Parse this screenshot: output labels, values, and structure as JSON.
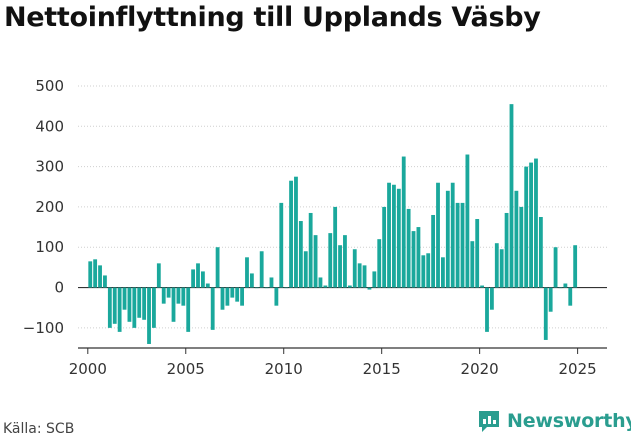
{
  "title": "Nettoinflyttning till Upplands Väsby",
  "source": "Källa: SCB",
  "brand": "Newsworthy",
  "colors": {
    "bar": "#1aa89c",
    "brand": "#2a9d8f"
  },
  "chart_data": {
    "type": "bar",
    "title": "Nettoinflyttning till Upplands Väsby",
    "xlabel": "",
    "ylabel": "",
    "ylim": [
      -150,
      500
    ],
    "xlim": [
      1999.5,
      2026.5
    ],
    "yticks": [
      -100,
      0,
      100,
      200,
      300,
      400,
      500
    ],
    "xticks": [
      2000,
      2005,
      2010,
      2015,
      2020,
      2025
    ],
    "tick_labels_y": [
      "−100",
      "0",
      "100",
      "200",
      "300",
      "400",
      "500"
    ],
    "tick_labels_x": [
      "2000",
      "2005",
      "2010",
      "2015",
      "2020",
      "2025"
    ],
    "grid": "horizontal",
    "start": "2000 Q1",
    "frequency": "quarterly",
    "values": [
      65,
      70,
      55,
      30,
      -100,
      -90,
      -110,
      -55,
      -85,
      -100,
      -75,
      -80,
      -140,
      -100,
      60,
      -40,
      -25,
      -85,
      -40,
      -45,
      -110,
      45,
      60,
      40,
      10,
      -105,
      100,
      -55,
      -45,
      -25,
      -35,
      -45,
      75,
      35,
      0,
      90,
      0,
      25,
      -45,
      210,
      0,
      265,
      275,
      165,
      90,
      185,
      130,
      25,
      5,
      135,
      200,
      105,
      130,
      5,
      95,
      60,
      55,
      -5,
      40,
      120,
      200,
      260,
      255,
      245,
      325,
      195,
      140,
      150,
      80,
      85,
      180,
      260,
      75,
      240,
      260,
      210,
      210,
      330,
      115,
      170,
      5,
      -110,
      -55,
      110,
      95,
      185,
      455,
      240,
      200,
      300,
      310,
      320,
      175,
      -130,
      -60,
      100,
      0,
      10,
      -45,
      105
    ]
  }
}
